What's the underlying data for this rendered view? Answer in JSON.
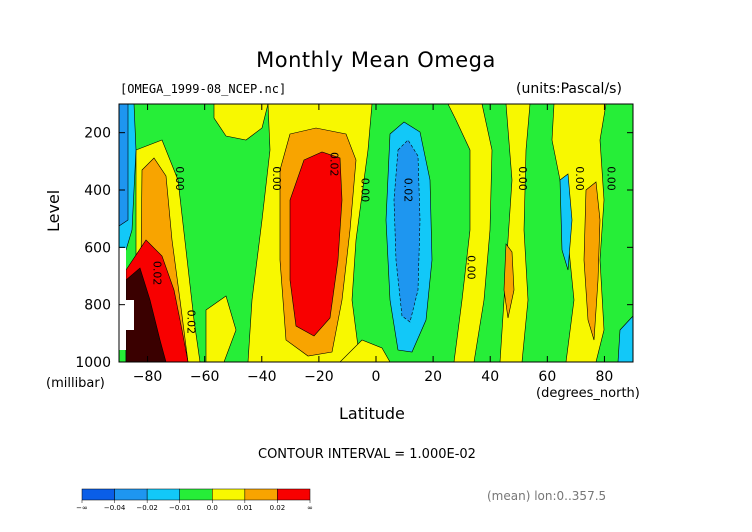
{
  "chart_data": {
    "type": "heatmap",
    "title": "Monthly Mean Omega",
    "file_label": "[OMEGA_1999-08_NCEP.nc]",
    "units_label": "(units:Pascal/s)",
    "ylabel": "Level",
    "yunit": "(millibar)",
    "xlabel": "Latitude",
    "xunit": "(degrees_north)",
    "xlim": [
      -90,
      90
    ],
    "ylim": [
      1000,
      100
    ],
    "x_ticks": [
      "-80",
      "-60",
      "-40",
      "-20",
      "0",
      "20",
      "40",
      "60",
      "80"
    ],
    "x_tick_values": [
      -80,
      -60,
      -40,
      -20,
      0,
      20,
      40,
      60,
      80
    ],
    "y_ticks": [
      "200",
      "400",
      "600",
      "800",
      "1000"
    ],
    "y_tick_values": [
      200,
      400,
      600,
      800,
      1000
    ],
    "contour_labels": [
      {
        "text": "0.00",
        "lat": -70,
        "lev": 360
      },
      {
        "text": "0.00",
        "lat": -36,
        "lev": 360
      },
      {
        "text": "0.02",
        "lat": -16,
        "lev": 310
      },
      {
        "text": "0.00",
        "lat": -5,
        "lev": 400
      },
      {
        "text": "0.02",
        "lat": 10,
        "lev": 400
      },
      {
        "text": "0.00",
        "lat": 32,
        "lev": 670
      },
      {
        "text": "0.00",
        "lat": 50,
        "lev": 360
      },
      {
        "text": "0.00",
        "lat": 70,
        "lev": 360
      },
      {
        "text": "0.00",
        "lat": 81,
        "lev": 360
      },
      {
        "text": "0.02",
        "lat": -78,
        "lev": 690
      },
      {
        "text": "0.02",
        "lat": -66,
        "lev": 860
      }
    ],
    "contour_interval": "CONTOUR INTERVAL = 1.000E-02",
    "mean_note": "(mean) lon:0..357.5",
    "legend": {
      "labels": [
        "-∞",
        "-0.04",
        "-0.02",
        "-0.01",
        "0.0",
        "0.01",
        "0.02",
        "∞"
      ],
      "colors": [
        "#0a5ee8",
        "#1e96f0",
        "#12c8f8",
        "#26ee38",
        "#f8f800",
        "#f8a400",
        "#f80000"
      ]
    }
  }
}
